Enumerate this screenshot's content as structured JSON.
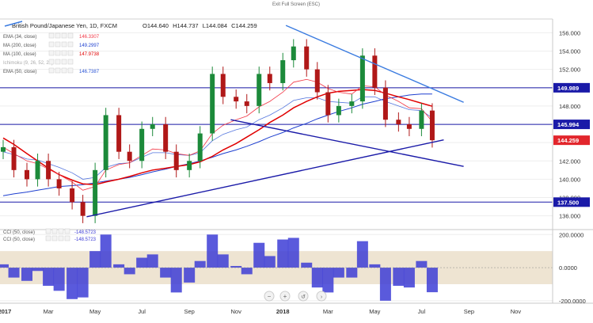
{
  "header": {
    "exit_fullscreen": "Exit Full Screen (ESC)"
  },
  "chart_data": {
    "type": "line",
    "title": "British Pound/Japanese Yen, 1D, FXCM",
    "ohlc": {
      "open": "144.640",
      "high": "144.737",
      "low": "144.084",
      "close": "144.259"
    },
    "price_axis": {
      "range": [
        134.5,
        157.5
      ],
      "ticks": [
        136,
        138,
        140,
        142,
        144,
        146,
        148,
        150,
        152,
        154,
        156
      ],
      "tick_labels": [
        "136.000",
        "138.000",
        "140.000",
        "142.000",
        "144.000",
        "146.000",
        "148.000",
        "150.000",
        "152.000",
        "154.000",
        "156.000"
      ]
    },
    "time_axis": {
      "ticks": [
        "2017",
        "Mar",
        "May",
        "Jul",
        "Sep",
        "Nov",
        "2018",
        "Mar",
        "May",
        "Jul",
        "Sep",
        "Nov"
      ]
    },
    "indicators": [
      {
        "name": "EMA (34, close)",
        "value": "146.3307",
        "color": "#f23645"
      },
      {
        "name": "MA (200, close)",
        "value": "149.2997",
        "color": "#1e3fcf"
      },
      {
        "name": "MA (100, close)",
        "value": "147.9738",
        "color": "#e00000"
      },
      {
        "name": "Ichimoku (9, 26, 52, 26)",
        "value": "",
        "color": "#b0b0b0"
      },
      {
        "name": "EMA (50, close)",
        "value": "146.7387",
        "color": "#2a54d6"
      }
    ],
    "horizontal_levels": [
      {
        "value": 149.989,
        "label": "149.989"
      },
      {
        "value": 145.994,
        "label": "145.994"
      },
      {
        "value": 137.5,
        "label": "137.500"
      }
    ],
    "last_price": {
      "value": 144.259,
      "label": "144.259"
    },
    "series": {
      "x": [
        "2017-01-01",
        "2017-01-15",
        "2017-02-01",
        "2017-02-15",
        "2017-03-01",
        "2017-03-15",
        "2017-04-01",
        "2017-04-15",
        "2017-05-01",
        "2017-05-15",
        "2017-06-01",
        "2017-06-15",
        "2017-07-01",
        "2017-07-15",
        "2017-08-01",
        "2017-08-15",
        "2017-09-01",
        "2017-09-15",
        "2017-10-01",
        "2017-10-15",
        "2017-11-01",
        "2017-11-15",
        "2017-12-01",
        "2017-12-15",
        "2018-01-01",
        "2018-01-15",
        "2018-02-01",
        "2018-02-15",
        "2018-03-01",
        "2018-03-15",
        "2018-04-01",
        "2018-04-15",
        "2018-05-01",
        "2018-05-15",
        "2018-06-01",
        "2018-06-15",
        "2018-07-01",
        "2018-07-15"
      ],
      "close": [
        143.5,
        141.0,
        140.0,
        142.0,
        140.0,
        139.0,
        137.5,
        136.0,
        141.0,
        147.0,
        143.0,
        142.0,
        145.5,
        146.0,
        143.0,
        141.0,
        142.0,
        145.0,
        151.5,
        149.0,
        148.5,
        148.0,
        151.5,
        150.5,
        153.0,
        154.5,
        152.0,
        149.5,
        147.0,
        148.0,
        148.5,
        153.5,
        150.0,
        146.5,
        146.0,
        145.5,
        147.5,
        144.259
      ],
      "ema34": [
        143.5,
        142.8,
        142.0,
        141.7,
        141.1,
        140.5,
        139.7,
        138.8,
        139.2,
        141.0,
        141.6,
        141.8,
        142.6,
        143.3,
        143.2,
        142.8,
        142.6,
        143.1,
        145.0,
        145.9,
        146.5,
        146.9,
        147.9,
        148.5,
        149.5,
        150.6,
        150.9,
        150.6,
        149.9,
        149.5,
        149.3,
        150.2,
        150.1,
        149.2,
        148.5,
        147.8,
        147.7,
        146.3
      ],
      "ema50": [
        143.0,
        142.7,
        142.2,
        142.1,
        141.7,
        141.3,
        140.7,
        140.0,
        140.2,
        141.3,
        141.7,
        141.8,
        142.4,
        142.9,
        142.9,
        142.7,
        142.6,
        142.9,
        144.2,
        144.9,
        145.4,
        145.7,
        146.5,
        147.0,
        147.8,
        148.6,
        148.9,
        148.9,
        148.5,
        148.4,
        148.3,
        149.0,
        149.0,
        148.5,
        148.0,
        147.6,
        147.5,
        146.7
      ],
      "ma100": [
        144.5,
        143.8,
        142.8,
        142.0,
        141.2,
        140.5,
        139.9,
        139.5,
        139.4,
        139.7,
        140.0,
        140.3,
        140.7,
        141.0,
        141.2,
        141.4,
        141.6,
        141.9,
        142.5,
        143.2,
        143.9,
        144.6,
        145.4,
        146.2,
        147.0,
        147.8,
        148.5,
        149.0,
        149.4,
        149.6,
        149.7,
        149.8,
        149.7,
        149.4,
        149.0,
        148.7,
        148.3,
        147.97
      ],
      "ma200": [
        138.2,
        138.4,
        138.6,
        138.8,
        139.0,
        139.2,
        139.3,
        139.4,
        139.6,
        139.8,
        140.0,
        140.2,
        140.5,
        140.8,
        141.1,
        141.4,
        141.7,
        142.0,
        142.4,
        142.8,
        143.2,
        143.6,
        144.1,
        144.6,
        145.1,
        145.6,
        146.1,
        146.6,
        147.0,
        147.4,
        147.8,
        148.2,
        148.5,
        148.8,
        149.0,
        149.2,
        149.3,
        149.3
      ]
    },
    "trendlines": [
      {
        "from": [
          "2018-01-05",
          156.8
        ],
        "to": [
          "2018-08-25",
          148.4
        ],
        "color": "#3a7be0"
      },
      {
        "from": [
          "2017-10-25",
          146.5
        ],
        "to": [
          "2018-08-25",
          141.4
        ],
        "color": "#1a1aa8"
      },
      {
        "from": [
          "2017-04-20",
          135.9
        ],
        "to": [
          "2018-07-30",
          144.3
        ],
        "color": "#1a1aa8"
      }
    ],
    "cci": {
      "name": "CCI (50, close)",
      "value": "-148.5723",
      "range": [
        -215,
        230
      ],
      "ticks": [
        200,
        0,
        -200
      ],
      "tick_labels": [
        "200.0000",
        "0.0000",
        "-200.0000"
      ],
      "band": [
        -100,
        100
      ],
      "values": [
        20,
        -60,
        -80,
        -20,
        -110,
        -140,
        -190,
        -180,
        100,
        200,
        20,
        -40,
        60,
        80,
        -60,
        -150,
        -90,
        40,
        200,
        80,
        10,
        -40,
        150,
        70,
        170,
        180,
        30,
        -120,
        -150,
        -60,
        -60,
        160,
        20,
        -200,
        -110,
        -120,
        40,
        -148.57
      ]
    },
    "time_range": [
      "2017-01-01",
      "2018-12-15"
    ]
  }
}
